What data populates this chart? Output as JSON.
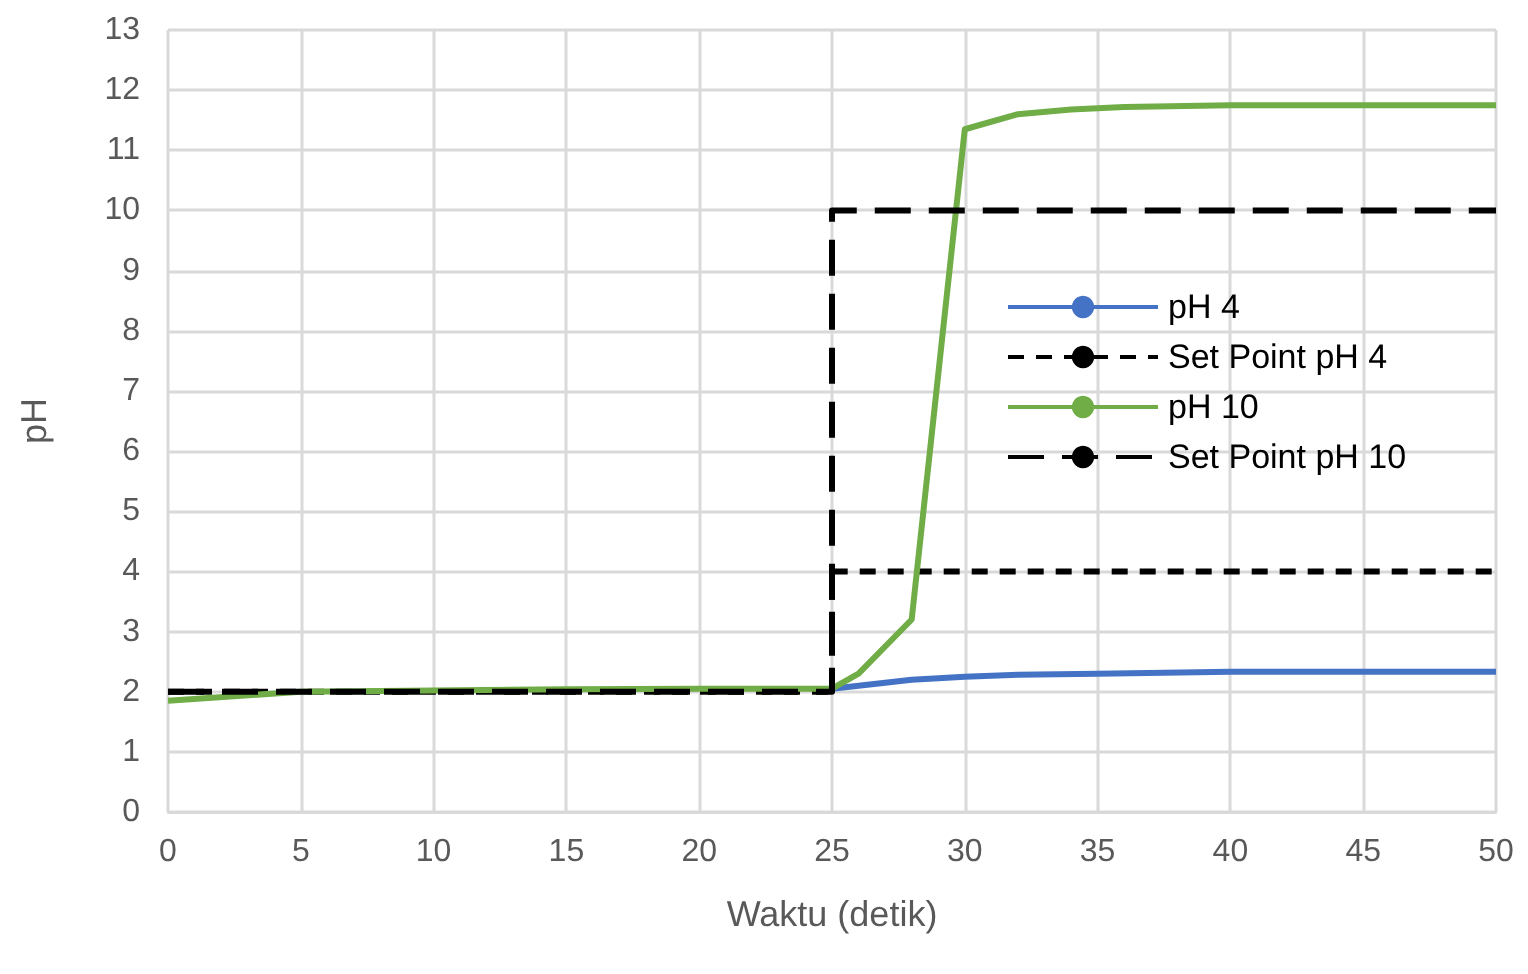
{
  "chart_data": {
    "type": "line",
    "xlabel": "Waktu (detik)",
    "ylabel": "pH",
    "xlim": [
      0,
      50
    ],
    "xticks": [
      0,
      5,
      10,
      15,
      20,
      25,
      30,
      35,
      40,
      45,
      50
    ],
    "ylim": [
      0,
      13
    ],
    "yticks": [
      0,
      1,
      2,
      3,
      4,
      5,
      6,
      7,
      8,
      9,
      10,
      11,
      12,
      13
    ],
    "grid": true,
    "legend": "right",
    "marker": "none",
    "series": [
      {
        "name": "pH 4",
        "color": "#4472c4",
        "line_style": "solid",
        "x": [
          25,
          26,
          28,
          30,
          32,
          35,
          40,
          45,
          50
        ],
        "values": [
          2.05,
          2.1,
          2.2,
          2.25,
          2.28,
          2.3,
          2.33,
          2.33,
          2.33
        ]
      },
      {
        "name": "Set Point pH 4",
        "color": "#000000",
        "line_style": "dashed",
        "x": [
          0,
          25,
          25,
          50
        ],
        "values": [
          2,
          2,
          4,
          4
        ]
      },
      {
        "name": "pH 10",
        "color": "#70ad47",
        "line_style": "solid",
        "x": [
          0,
          5,
          10,
          15,
          20,
          25,
          26,
          28,
          30,
          32,
          34,
          36,
          40,
          45,
          50
        ],
        "values": [
          1.85,
          2.0,
          2.02,
          2.04,
          2.05,
          2.05,
          2.3,
          3.2,
          11.35,
          11.6,
          11.68,
          11.72,
          11.75,
          11.75,
          11.75
        ]
      },
      {
        "name": "Set Point pH 10",
        "color": "#000000",
        "line_style": "dashed",
        "x": [
          0,
          25,
          25,
          50
        ],
        "values": [
          2,
          2,
          10,
          10
        ]
      }
    ]
  }
}
